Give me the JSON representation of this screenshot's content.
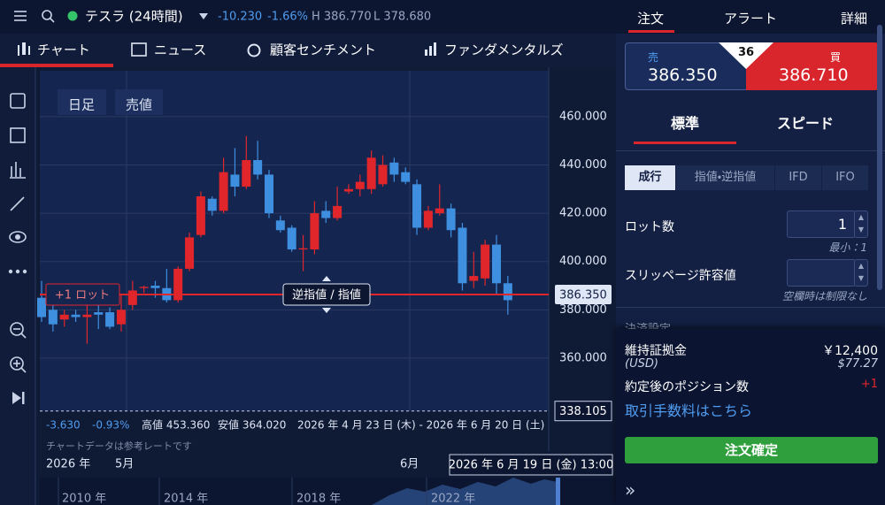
{
  "header": {
    "symbol": "テスラ (24時間)",
    "change": "-10.230",
    "change_pct": "-1.66%",
    "high": "H 386.770",
    "low": "L 378.680"
  },
  "tabs": [
    "チャート",
    "ニュース",
    "顧客センチメント",
    "ファンダメンタルズ"
  ],
  "chart_data": {
    "type": "candlestick",
    "buttons": [
      "日足",
      "売値"
    ],
    "up_color": "#e0262b",
    "down_color": "#3f8fe0",
    "open": [
      385,
      380,
      376,
      378,
      377,
      379,
      379,
      374,
      382,
      389,
      390,
      389,
      384,
      397,
      411,
      426,
      421,
      436,
      431,
      442,
      436,
      417,
      414,
      405,
      405,
      421,
      418,
      429,
      430,
      430,
      432,
      441,
      437,
      432,
      414,
      420,
      422,
      414,
      392,
      393,
      407,
      391
    ],
    "high": [
      392,
      383,
      380,
      380,
      385,
      382,
      381,
      386,
      392,
      390,
      392,
      397,
      398,
      412,
      429,
      427,
      443,
      447,
      452,
      450,
      438,
      419,
      415,
      411,
      425,
      425,
      431,
      432,
      436,
      446,
      444,
      443,
      439,
      434,
      423,
      432,
      424,
      416,
      404,
      409,
      411,
      394
    ],
    "low": [
      375,
      371,
      373,
      375,
      366,
      372,
      372,
      371,
      380,
      387,
      385,
      383,
      383,
      396,
      410,
      419,
      420,
      427,
      430,
      434,
      418,
      412,
      404,
      396,
      403,
      416,
      417,
      428,
      427,
      428,
      431,
      433,
      432,
      411,
      413,
      419,
      410,
      388,
      389,
      390,
      386,
      378
    ],
    "close": [
      377,
      374,
      378,
      377,
      378,
      378,
      373,
      380,
      388,
      389.5,
      389,
      384,
      397,
      410,
      427,
      421,
      437,
      431,
      442,
      436,
      420,
      413,
      405,
      405.5,
      420,
      418,
      423,
      430,
      433,
      443,
      440,
      436,
      433,
      414,
      421,
      422,
      413,
      391,
      394,
      407,
      391,
      384
    ],
    "ylim": [
      338,
      479
    ],
    "yticks": [
      {
        "value": 460,
        "label": "460.000"
      },
      {
        "value": 440,
        "label": "440.000"
      },
      {
        "value": 420,
        "label": "420.000"
      },
      {
        "value": 400,
        "label": "400.000"
      },
      {
        "value": 380,
        "label": "380.000"
      },
      {
        "value": 360,
        "label": "360.000"
      }
    ],
    "grid": true,
    "price_line": {
      "value": 386.35,
      "label": "386.350"
    },
    "low_line": {
      "value": 338.105,
      "label": "338.105"
    },
    "order_line_label": "+1 ロット",
    "drag_label": "逆指値 / 指値",
    "stats": [
      "-3.630",
      "-0.93%",
      "高値 453.360",
      "安値 364.020",
      "2026 年 4 月 23 日 (木) - 2026 年 6 月 20 日 (土)"
    ],
    "note": "チャートデータは参考レートです",
    "x_labels": [
      "2026 年",
      "5月",
      "6月"
    ],
    "crosshair_label": "2026 年 6 月 19 日 (金) 13:00",
    "navigator_labels": [
      "2010 年",
      "2014 年",
      "2018 年",
      "2022 年"
    ]
  },
  "order_panel": {
    "tabs": [
      "注文",
      "アラート",
      "詳細"
    ],
    "sell": {
      "label": "売",
      "price": "386.350"
    },
    "spread": "36",
    "buy": {
      "label": "買",
      "price": "386.710"
    },
    "modes": [
      "標準",
      "スピード"
    ],
    "order_types": [
      "成行",
      "指値・逆指値",
      "IFD",
      "IFO"
    ],
    "lot": {
      "label": "ロット数",
      "value": "1",
      "hint": "最小：1"
    },
    "slippage": {
      "label": "スリッページ許容値",
      "hint": "空欄時は制限なし"
    },
    "settlement": "決済設定",
    "margin": {
      "label": "維持証拠金",
      "value": "￥12,400",
      "sub_label": "(USD)",
      "sub_value": "$77.27"
    },
    "position": {
      "label": "約定後のポジション数",
      "value": "+1"
    },
    "fee_link": "取引手数料はこちら",
    "confirm": "注文確定"
  }
}
